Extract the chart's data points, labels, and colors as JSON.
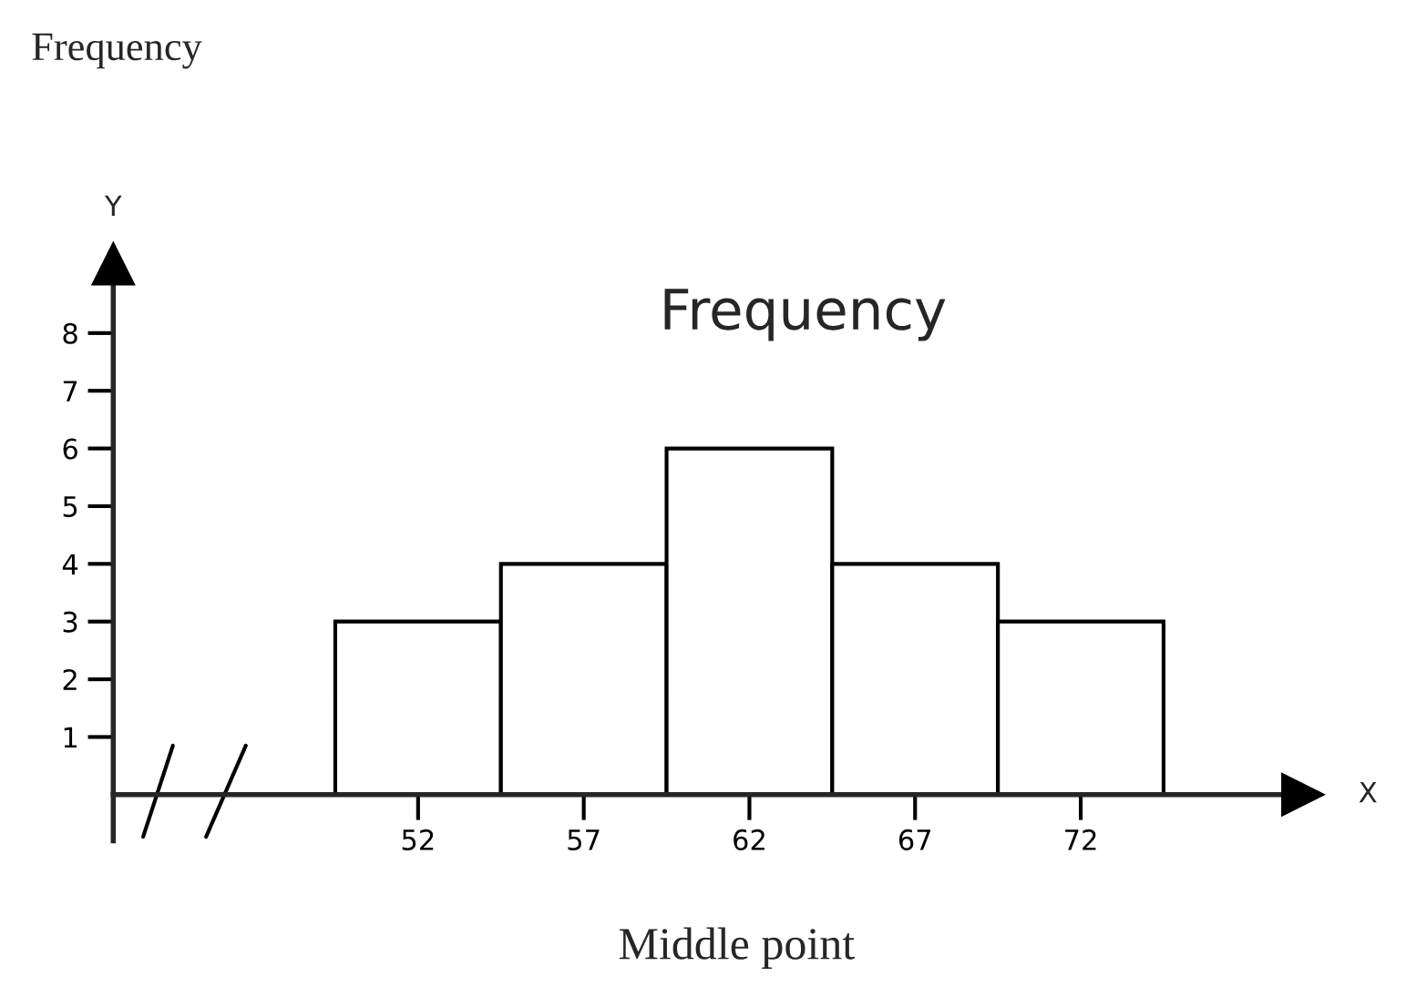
{
  "chart_data": {
    "type": "histogram",
    "title": "Frequency",
    "xlabel": "Middle point",
    "annotations": [
      "Y",
      "X",
      "Frequency"
    ],
    "bins": [
      49.5,
      54.5,
      59.5,
      64.5,
      69.5,
      74.5
    ],
    "values": [
      3,
      4,
      6,
      4,
      3
    ],
    "color": "#ffffff",
    "xlim": [
      42.8,
      78.7
    ],
    "xticks": [
      52,
      57,
      62,
      67,
      72
    ],
    "ylim": [
      -0.8,
      9.2
    ],
    "yticks": [
      1,
      2,
      3,
      4,
      5,
      6,
      7,
      8
    ],
    "grid": false
  }
}
